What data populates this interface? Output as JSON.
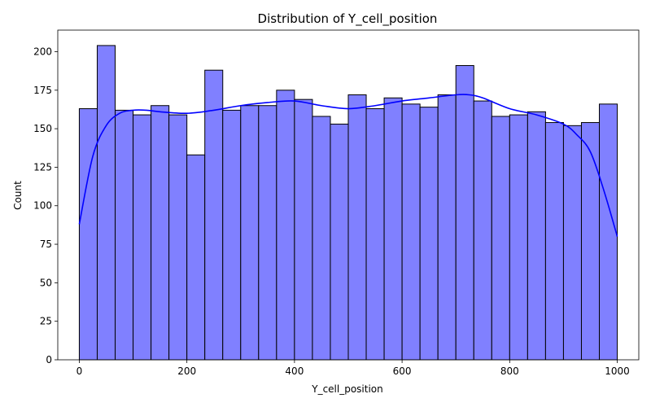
{
  "chart_data": {
    "type": "bar",
    "title": "Distribution of Y_cell_position",
    "xlabel": "Y_cell_position",
    "ylabel": "Count",
    "xlim": [
      -40,
      1040
    ],
    "ylim": [
      0,
      214
    ],
    "xticks": [
      0,
      200,
      400,
      600,
      800,
      1000
    ],
    "yticks": [
      0,
      25,
      50,
      75,
      100,
      125,
      150,
      175,
      200
    ],
    "grid": false,
    "bin_edges": [
      0,
      33.333,
      66.667,
      100,
      133.333,
      166.667,
      200,
      233.333,
      266.667,
      300,
      333.333,
      366.667,
      400,
      433.333,
      466.667,
      500,
      533.333,
      566.667,
      600,
      633.333,
      666.667,
      700,
      733.333,
      766.667,
      800,
      833.333,
      866.667,
      900,
      933.333,
      966.667,
      1000
    ],
    "values": [
      163,
      204,
      162,
      159,
      165,
      159,
      133,
      188,
      162,
      165,
      165,
      175,
      169,
      158,
      153,
      172,
      163,
      170,
      166,
      164,
      172,
      191,
      168,
      158,
      159,
      161,
      154,
      152,
      154,
      166
    ],
    "kde": {
      "x": [
        0,
        25,
        50,
        75,
        100,
        125,
        150,
        200,
        250,
        300,
        350,
        400,
        450,
        500,
        550,
        600,
        650,
        700,
        725,
        750,
        800,
        850,
        900,
        925,
        950,
        975,
        1000
      ],
      "y": [
        88,
        132,
        152,
        160,
        162,
        162,
        161,
        160,
        162,
        165,
        167,
        168,
        165,
        163,
        165,
        168,
        170,
        172,
        172,
        170,
        163,
        159,
        153,
        146,
        135,
        110,
        80
      ]
    },
    "colors": {
      "bar_fill": "#8080ff",
      "bar_edge": "#000000",
      "kde_line": "#0000ff"
    }
  }
}
